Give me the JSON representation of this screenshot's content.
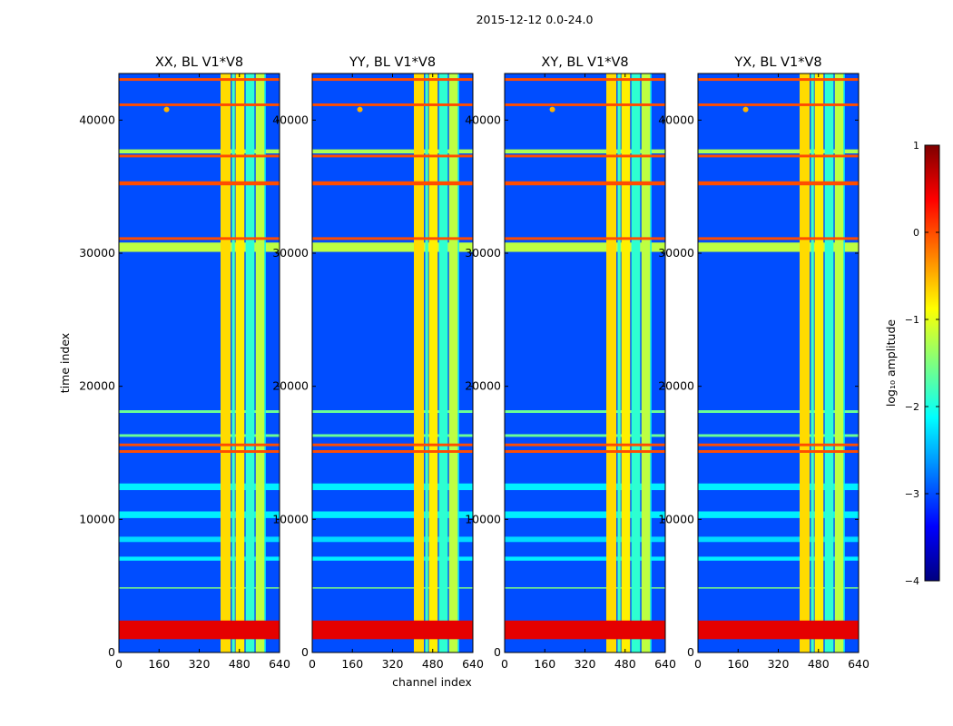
{
  "suptitle": "2015-12-12 0.0-24.0",
  "chart_data": {
    "type": "heatmap",
    "xlabel": "channel index",
    "ylabel": "time index",
    "xlim": [
      0,
      640
    ],
    "ylim": [
      0,
      43500
    ],
    "xticks": [
      0,
      160,
      320,
      480,
      640
    ],
    "yticks": [
      0,
      10000,
      20000,
      30000,
      40000
    ],
    "xtick_labels": [
      "0",
      "160",
      "320",
      "480",
      "640"
    ],
    "ytick_labels": [
      "0",
      "10000",
      "20000",
      "30000",
      "40000"
    ],
    "panels": [
      {
        "title": "XX, BL V1*V8"
      },
      {
        "title": "YY, BL V1*V8"
      },
      {
        "title": "XY, BL V1*V8"
      },
      {
        "title": "YX, BL V1*V8"
      }
    ],
    "colorbar": {
      "label": "log₁₀ amplitude",
      "range": [
        -4,
        1
      ],
      "ticks": [
        1,
        0,
        -1,
        -2,
        -3,
        -4
      ],
      "tick_labels": [
        "1",
        "0",
        "−1",
        "−2",
        "−3",
        "−4"
      ],
      "colormap": "jet",
      "colors": [
        "#00007f",
        "#0000ff",
        "#007fff",
        "#00ffff",
        "#7fff7f",
        "#ffff00",
        "#ff7f00",
        "#ff0000",
        "#7f0000"
      ]
    },
    "features": {
      "background_value": -3,
      "rfi_channel_bands": [
        {
          "from": 405,
          "to": 445,
          "value": -0.7
        },
        {
          "from": 450,
          "to": 462,
          "value": -1.8
        },
        {
          "from": 465,
          "to": 500,
          "value": -0.8
        },
        {
          "from": 505,
          "to": 540,
          "value": -1.9
        },
        {
          "from": 545,
          "to": 580,
          "value": -1.2
        },
        {
          "from": 580,
          "to": 585,
          "value": -2.2
        }
      ],
      "strong_time_bands": [
        {
          "from": 42950,
          "to": 43150,
          "value": 0
        },
        {
          "from": 41050,
          "to": 41250,
          "value": 0
        },
        {
          "from": 37200,
          "to": 37400,
          "value": 0
        },
        {
          "from": 35100,
          "to": 35400,
          "value": 0
        },
        {
          "from": 31000,
          "to": 31200,
          "value": 0
        },
        {
          "from": 15500,
          "to": 15700,
          "value": 0
        },
        {
          "from": 15000,
          "to": 15200,
          "value": 0
        },
        {
          "from": 1000,
          "to": 2400,
          "value": 0.5
        }
      ],
      "weak_time_bands": [
        {
          "from": 37500,
          "to": 37800,
          "value": -1.3
        },
        {
          "from": 30100,
          "to": 30800,
          "value": -1.2
        },
        {
          "from": 18000,
          "to": 18200,
          "value": -1.6
        },
        {
          "from": 16200,
          "to": 16400,
          "value": -1.6
        },
        {
          "from": 12200,
          "to": 12700,
          "value": -2.2
        },
        {
          "from": 10100,
          "to": 10600,
          "value": -2.2
        },
        {
          "from": 8300,
          "to": 8700,
          "value": -2.3
        },
        {
          "from": 6900,
          "to": 7200,
          "value": -2.2
        },
        {
          "from": 4800,
          "to": 4900,
          "value": -1.5
        }
      ],
      "source_point": {
        "channel": 190,
        "time": 40800
      }
    }
  }
}
